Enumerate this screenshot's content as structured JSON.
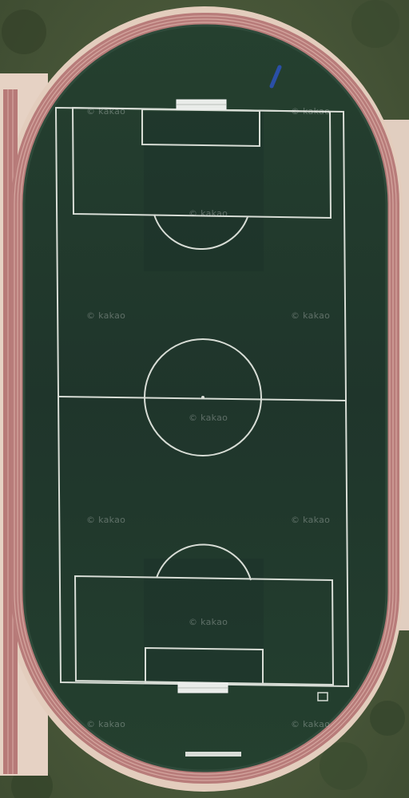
{
  "map": {
    "provider_watermark": "© kakao",
    "scene": "aerial view of a football pitch inside an oval running track",
    "colors": {
      "grass_outer": "#4c5a3a",
      "apron": "#e3cdbd",
      "track": "#b87c7a",
      "track_lane": "#d5a7a0",
      "pitch": "#22392f",
      "pitch_dark": "#1b2f27",
      "lines": "#d8ddd6"
    }
  }
}
